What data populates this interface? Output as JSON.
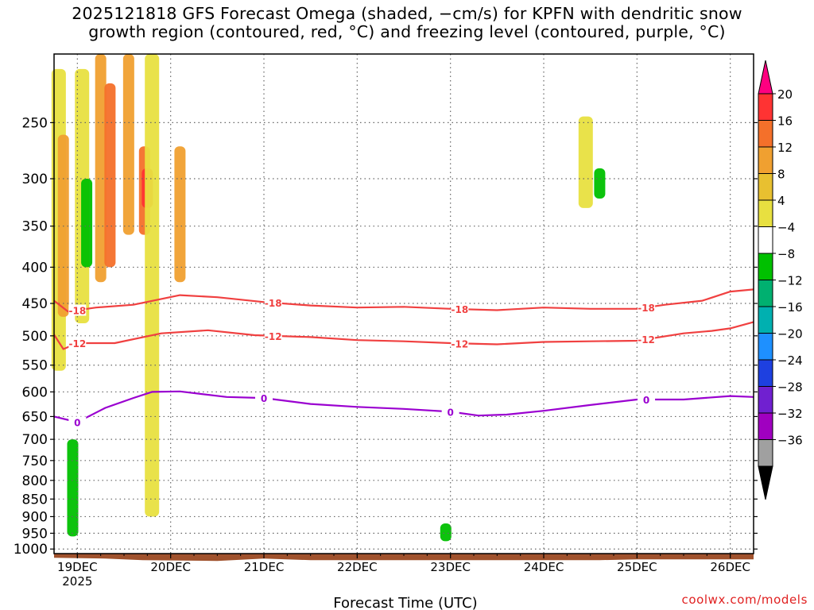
{
  "title": {
    "line1": "2025121818 GFS Forecast Omega (shaded, −cm/s) for KPFN with dendritic snow",
    "line2": "growth region (contoured, red, °C) and freezing level (contoured, purple, °C)"
  },
  "credit": "coolwx.com/models",
  "chart_data": {
    "type": "heatmap",
    "title": "2025121818 GFS Forecast Omega (shaded, −cm/s) for KPFN with dendritic snow growth region (contoured, red, °C) and freezing level (contoured, purple, °C)",
    "xlabel": "Forecast Time (UTC)",
    "ylabel": "",
    "x_ticks": [
      "19DEC",
      "20DEC",
      "21DEC",
      "22DEC",
      "23DEC",
      "24DEC",
      "25DEC",
      "26DEC"
    ],
    "x_year_label": "2025",
    "xlim_days": [
      18.75,
      26.25
    ],
    "y_ticks": [
      250,
      300,
      350,
      400,
      450,
      500,
      550,
      600,
      650,
      700,
      750,
      800,
      850,
      900,
      950,
      1000
    ],
    "ylim_hpa": [
      1015,
      200
    ],
    "y_scale": "log-pressure (inverted)",
    "grid": true,
    "colorbar": {
      "labels": [
        "20",
        "16",
        "12",
        "8",
        "4",
        "−4",
        "−8",
        "−12",
        "−16",
        "−20",
        "−24",
        "−28",
        "−32",
        "−36"
      ],
      "colors": [
        "#ff0080",
        "#ff3333",
        "#f4702a",
        "#f0a030",
        "#e8c030",
        "#e8e040",
        "#ffffff",
        "#00c000",
        "#00b070",
        "#00b0b0",
        "#1e90ff",
        "#1e40e0",
        "#7020d0",
        "#a000c0",
        "#a0a0a0",
        "#000000"
      ]
    },
    "contours": [
      {
        "name": "dendritic -18",
        "label": "-18",
        "color": "#f04040",
        "x": [
          18.75,
          18.9,
          19.2,
          19.6,
          20.1,
          20.5,
          21.0,
          21.5,
          22.0,
          22.5,
          23.0,
          23.5,
          24.0,
          24.5,
          25.0,
          25.3,
          25.7,
          26.0,
          26.25
        ],
        "y": [
          446,
          462,
          456,
          452,
          438,
          441,
          448,
          453,
          456,
          455,
          458,
          460,
          456,
          458,
          458,
          452,
          446,
          433,
          430
        ],
        "label_x": [
          19.0,
          21.1,
          23.1,
          25.1
        ]
      },
      {
        "name": "dendritic -12",
        "label": "-12",
        "color": "#f04040",
        "x": [
          18.75,
          18.85,
          19.0,
          19.4,
          19.9,
          20.4,
          20.9,
          21.5,
          22.0,
          22.5,
          23.0,
          23.5,
          24.0,
          24.5,
          25.0,
          25.5,
          25.8,
          26.0,
          26.25
        ],
        "y": [
          498,
          522,
          512,
          512,
          496,
          491,
          499,
          502,
          507,
          509,
          512,
          514,
          510,
          509,
          508,
          496,
          492,
          488,
          478
        ],
        "label_x": [
          19.0,
          21.1,
          23.1,
          25.1
        ]
      },
      {
        "name": "freezing level 0",
        "label": "0",
        "color": "#9a00d0",
        "x": [
          18.75,
          19.0,
          19.3,
          19.6,
          19.8,
          20.1,
          20.6,
          21.0,
          21.5,
          22.0,
          22.5,
          23.0,
          23.3,
          23.6,
          24.0,
          24.5,
          25.0,
          25.5,
          26.0,
          26.25
        ],
        "y": [
          650,
          662,
          632,
          612,
          600,
          599,
          610,
          612,
          624,
          630,
          634,
          640,
          648,
          646,
          638,
          626,
          615,
          615,
          608,
          610
        ],
        "label_x": [
          19.0,
          21.0,
          23.0,
          25.1
        ]
      }
    ],
    "shading_regions": [
      {
        "t": 18.8,
        "p1": 210,
        "p2": 560,
        "v": 4
      },
      {
        "t": 18.85,
        "p1": 260,
        "p2": 470,
        "v": 8
      },
      {
        "t": 19.05,
        "p1": 210,
        "p2": 480,
        "v": 4
      },
      {
        "t": 19.1,
        "p1": 300,
        "p2": 400,
        "v": -8
      },
      {
        "t": 19.25,
        "p1": 200,
        "p2": 420,
        "v": 8
      },
      {
        "t": 19.35,
        "p1": 220,
        "p2": 400,
        "v": 12
      },
      {
        "t": 19.55,
        "p1": 200,
        "p2": 360,
        "v": 8
      },
      {
        "t": 19.72,
        "p1": 270,
        "p2": 360,
        "v": 12
      },
      {
        "t": 19.75,
        "p1": 290,
        "p2": 330,
        "v": 16
      },
      {
        "t": 19.8,
        "p1": 200,
        "p2": 900,
        "v": 4
      },
      {
        "t": 20.1,
        "p1": 270,
        "p2": 420,
        "v": 8
      },
      {
        "t": 24.45,
        "p1": 245,
        "p2": 330,
        "v": 4
      },
      {
        "t": 24.6,
        "p1": 290,
        "p2": 320,
        "v": -8
      },
      {
        "t": 22.95,
        "p1": 920,
        "p2": 975,
        "v": -8
      },
      {
        "t": 18.95,
        "p1": 700,
        "p2": 960,
        "v": -8
      }
    ],
    "terrain_color": "#a0522d"
  }
}
